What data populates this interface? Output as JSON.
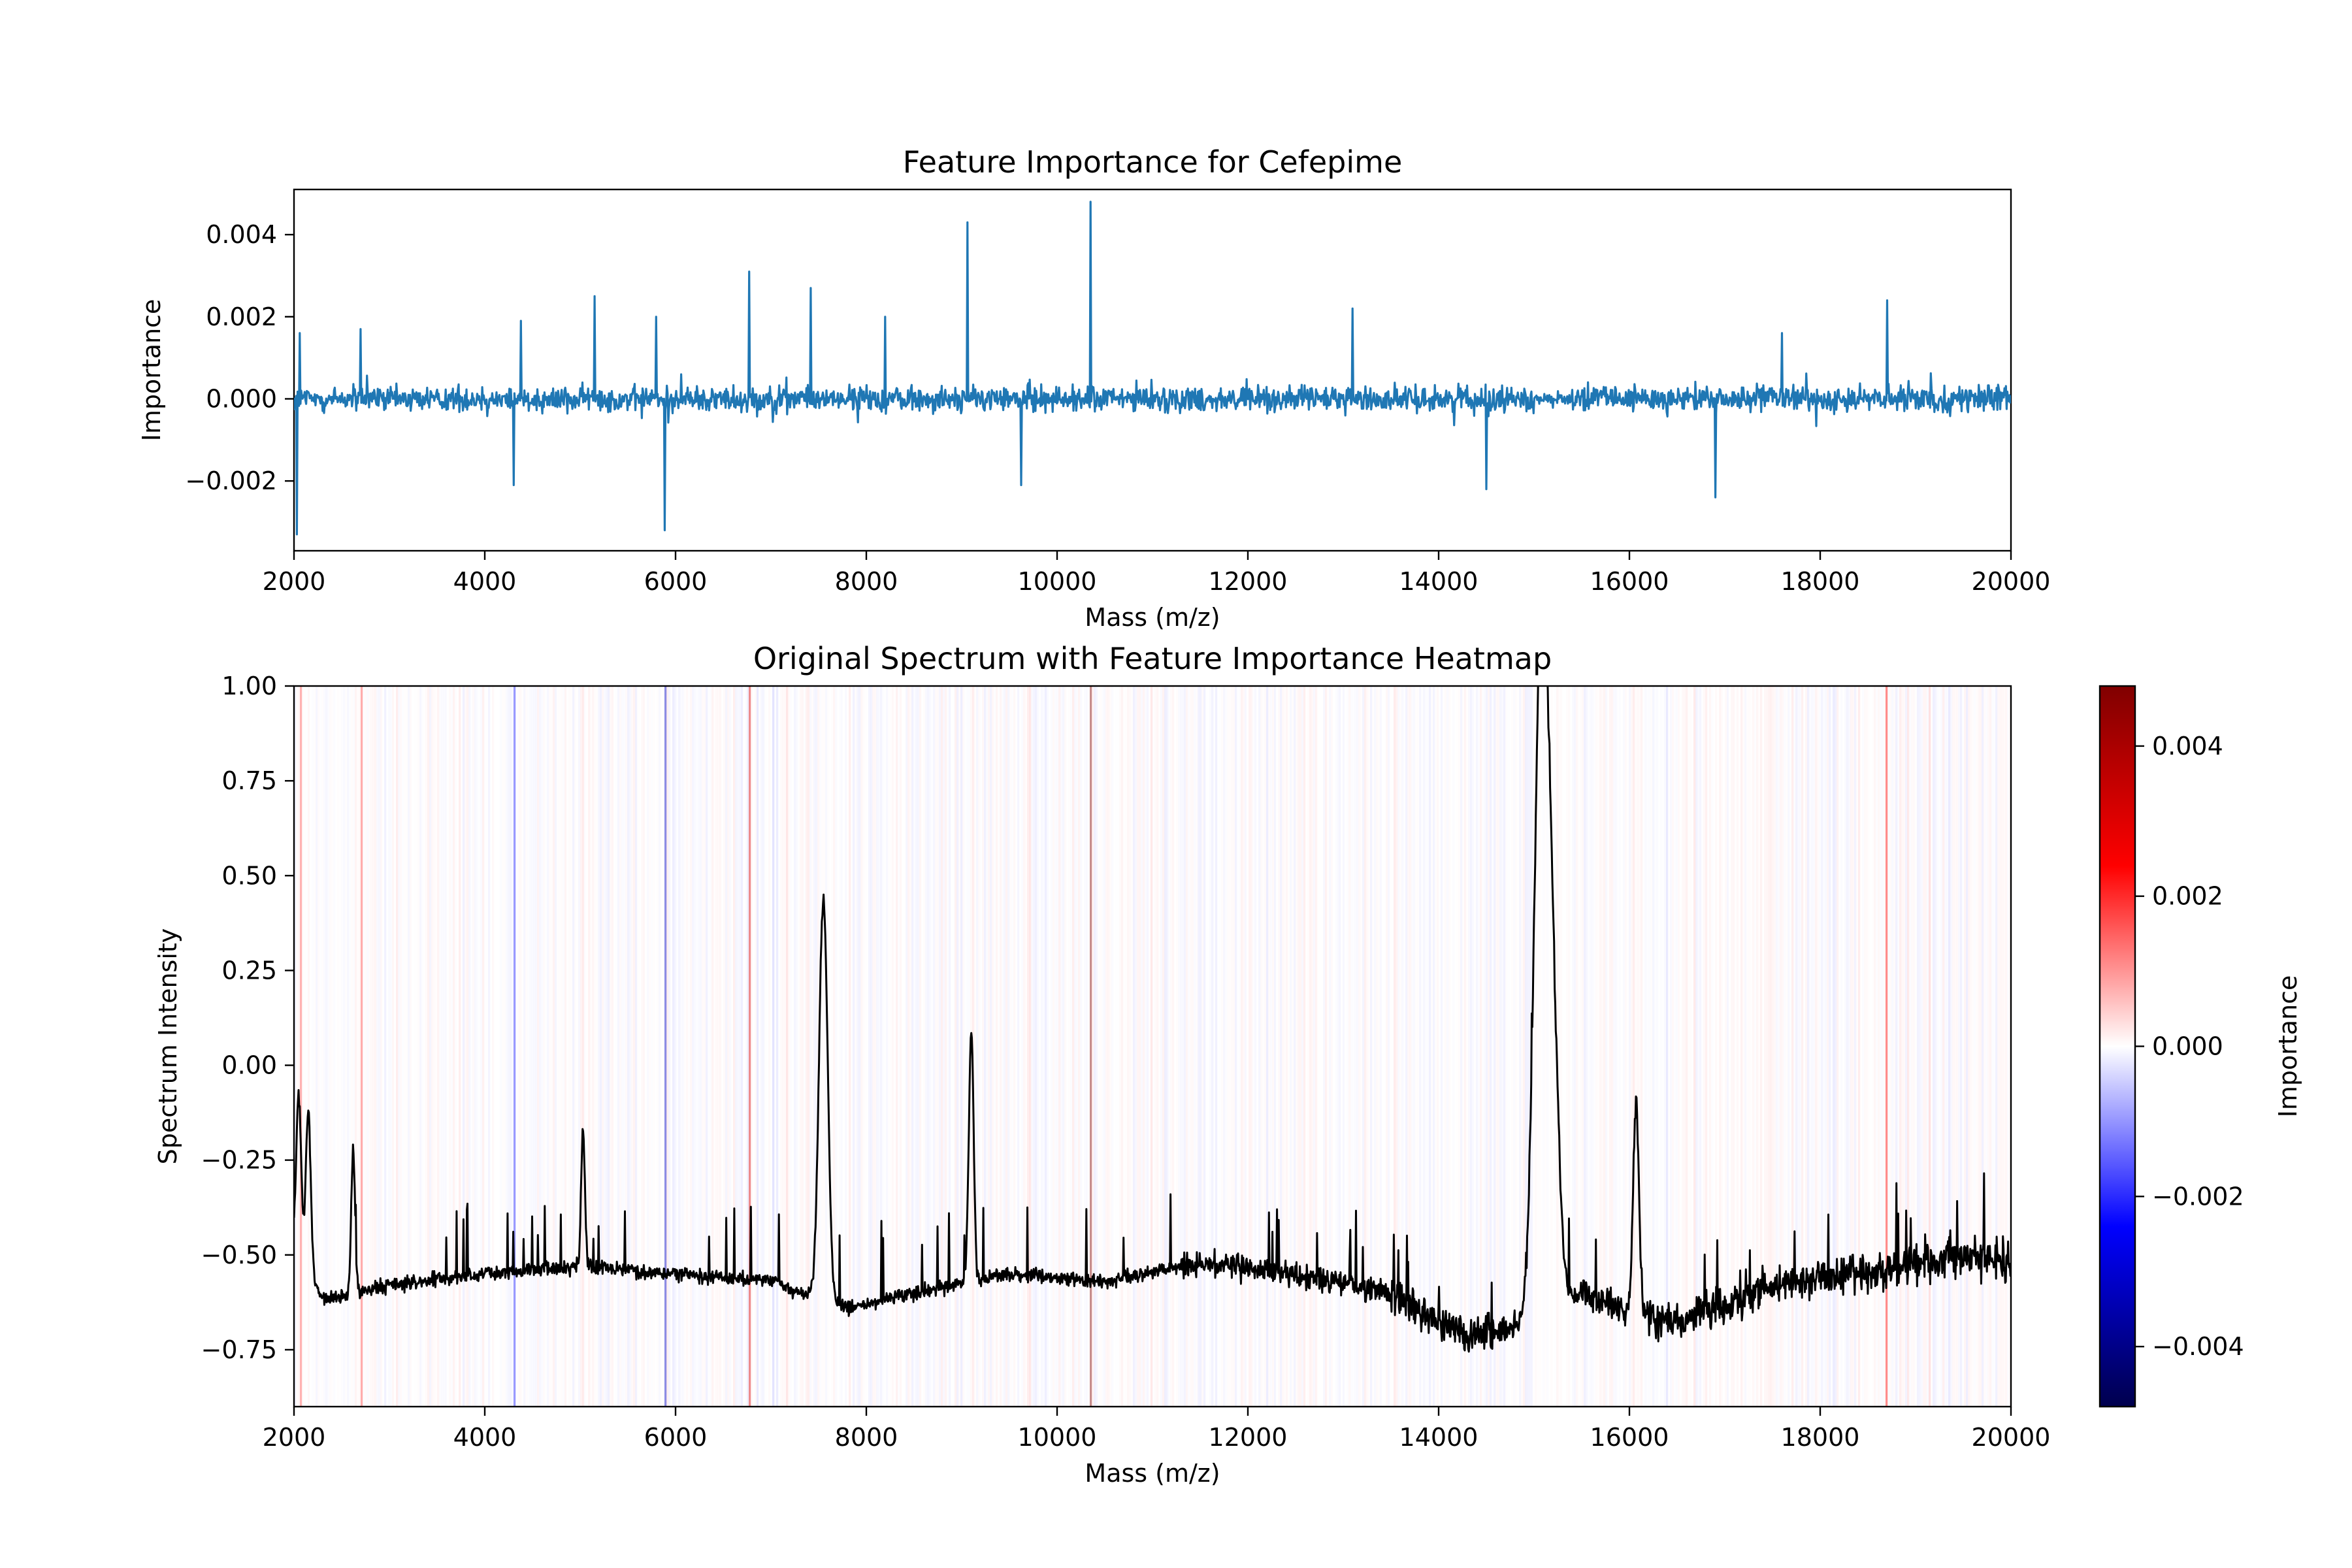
{
  "chart_data": [
    {
      "type": "line",
      "title": "Feature Importance for Cefepime",
      "xlabel": "Mass (m/z)",
      "ylabel": "Importance",
      "xlim": [
        2000,
        20000
      ],
      "ylim": [
        -0.0037,
        0.0051
      ],
      "xticks": [
        2000,
        4000,
        6000,
        8000,
        10000,
        12000,
        14000,
        16000,
        18000,
        20000
      ],
      "yticks": [
        -0.002,
        0.0,
        0.002,
        0.004
      ],
      "ytick_labels": [
        "−0.002",
        "0.000",
        "0.002",
        "0.004"
      ],
      "grid": false,
      "series": [
        {
          "color": "#1f77b4",
          "noise_amplitude": 0.00045,
          "peaks": [
            {
              "x": 2030,
              "y": -0.0033
            },
            {
              "x": 2060,
              "y": 0.0016
            },
            {
              "x": 2700,
              "y": 0.0017
            },
            {
              "x": 4300,
              "y": -0.0021
            },
            {
              "x": 4380,
              "y": 0.0019
            },
            {
              "x": 5150,
              "y": 0.0025
            },
            {
              "x": 5800,
              "y": 0.002
            },
            {
              "x": 5890,
              "y": -0.0032
            },
            {
              "x": 6770,
              "y": 0.0031
            },
            {
              "x": 7420,
              "y": 0.0027
            },
            {
              "x": 8200,
              "y": 0.002
            },
            {
              "x": 9060,
              "y": 0.0043
            },
            {
              "x": 9620,
              "y": -0.0021
            },
            {
              "x": 10350,
              "y": 0.0048
            },
            {
              "x": 13100,
              "y": 0.0022
            },
            {
              "x": 14500,
              "y": -0.0022
            },
            {
              "x": 16900,
              "y": -0.0024
            },
            {
              "x": 17600,
              "y": 0.0016
            },
            {
              "x": 18700,
              "y": 0.0024
            }
          ]
        }
      ]
    },
    {
      "type": "line",
      "title": "Original Spectrum with Feature Importance Heatmap",
      "xlabel": "Mass (m/z)",
      "ylabel": "Spectrum Intensity",
      "xlim": [
        2000,
        20000
      ],
      "ylim": [
        -0.9,
        1.0
      ],
      "xticks": [
        2000,
        4000,
        6000,
        8000,
        10000,
        12000,
        14000,
        16000,
        18000,
        20000
      ],
      "yticks": [
        -0.75,
        -0.5,
        -0.25,
        0.0,
        0.25,
        0.5,
        0.75,
        1.0
      ],
      "ytick_labels": [
        "−0.75",
        "−0.50",
        "−0.25",
        "0.00",
        "0.25",
        "0.50",
        "0.75",
        "1.00"
      ],
      "grid": false,
      "background": "importance heatmap stripes (seismic colormap)",
      "series": [
        {
          "color": "#000000",
          "baseline": [
            {
              "x": 2000,
              "y": -0.45
            },
            {
              "x": 2300,
              "y": -0.62
            },
            {
              "x": 3000,
              "y": -0.58
            },
            {
              "x": 4000,
              "y": -0.55
            },
            {
              "x": 5000,
              "y": -0.53
            },
            {
              "x": 6000,
              "y": -0.55
            },
            {
              "x": 7000,
              "y": -0.57
            },
            {
              "x": 7800,
              "y": -0.64
            },
            {
              "x": 8500,
              "y": -0.6
            },
            {
              "x": 9500,
              "y": -0.55
            },
            {
              "x": 10500,
              "y": -0.57
            },
            {
              "x": 11500,
              "y": -0.52
            },
            {
              "x": 12500,
              "y": -0.55
            },
            {
              "x": 13500,
              "y": -0.6
            },
            {
              "x": 14300,
              "y": -0.72
            },
            {
              "x": 14700,
              "y": -0.7
            },
            {
              "x": 15500,
              "y": -0.6
            },
            {
              "x": 16000,
              "y": -0.65
            },
            {
              "x": 16500,
              "y": -0.68
            },
            {
              "x": 17500,
              "y": -0.58
            },
            {
              "x": 18500,
              "y": -0.55
            },
            {
              "x": 19500,
              "y": -0.5
            },
            {
              "x": 20000,
              "y": -0.52
            }
          ],
          "peaks": [
            {
              "x": 2050,
              "y": -0.08,
              "width": 25
            },
            {
              "x": 2150,
              "y": -0.12,
              "width": 25
            },
            {
              "x": 2620,
              "y": -0.22,
              "width": 20
            },
            {
              "x": 5030,
              "y": -0.17,
              "width": 20
            },
            {
              "x": 7550,
              "y": 0.44,
              "width": 45
            },
            {
              "x": 9100,
              "y": 0.09,
              "width": 25
            },
            {
              "x": 15070,
              "y": 1.0,
              "width": 70
            },
            {
              "x": 15180,
              "y": 0.14,
              "width": 70
            },
            {
              "x": 16070,
              "y": -0.1,
              "width": 30
            }
          ]
        }
      ]
    }
  ],
  "colorbar": {
    "label": "Importance",
    "range": [
      -0.0048,
      0.0048
    ],
    "colormap": "seismic",
    "ticks": [
      -0.004,
      -0.002,
      0.0,
      0.002,
      0.004
    ],
    "tick_labels": [
      "−0.004",
      "−0.002",
      "0.000",
      "0.002",
      "0.004"
    ]
  }
}
